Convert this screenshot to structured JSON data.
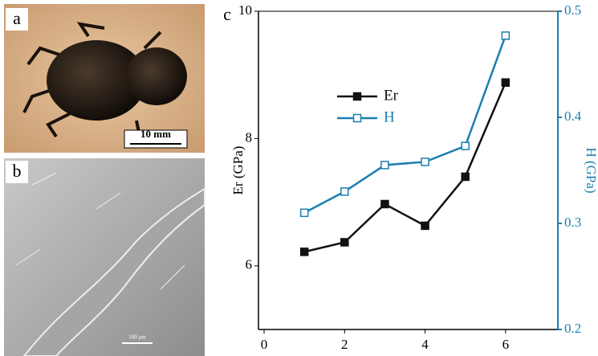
{
  "panels": {
    "a": {
      "label": "a",
      "scale": "10 mm"
    },
    "b": {
      "label": "b",
      "scale": "100 μm"
    }
  },
  "chart_data": {
    "type": "line",
    "panel_label": "c",
    "x": [
      1,
      2,
      3,
      4,
      5,
      6
    ],
    "xlim": [
      -0.14,
      7.3
    ],
    "xticks": [
      0,
      2,
      4,
      6
    ],
    "ylim": [
      5,
      10
    ],
    "yticks": [
      6,
      8,
      10
    ],
    "y2lim": [
      0.2,
      0.5
    ],
    "y2ticks": [
      0.2,
      0.3,
      0.4,
      0.5
    ],
    "ylabel": "Er (GPa)",
    "y2label": "H (GPa)",
    "y2color": "#1a7fb0",
    "series": [
      {
        "name": "Er",
        "color": "#111111",
        "open": false,
        "values": [
          6.22,
          6.37,
          6.97,
          6.63,
          7.4,
          8.88
        ]
      },
      {
        "name": "H",
        "color": "#1a7fb0",
        "open": true,
        "axis": "y2",
        "values": [
          0.31,
          0.33,
          0.355,
          0.358,
          0.373,
          0.477
        ]
      }
    ]
  }
}
